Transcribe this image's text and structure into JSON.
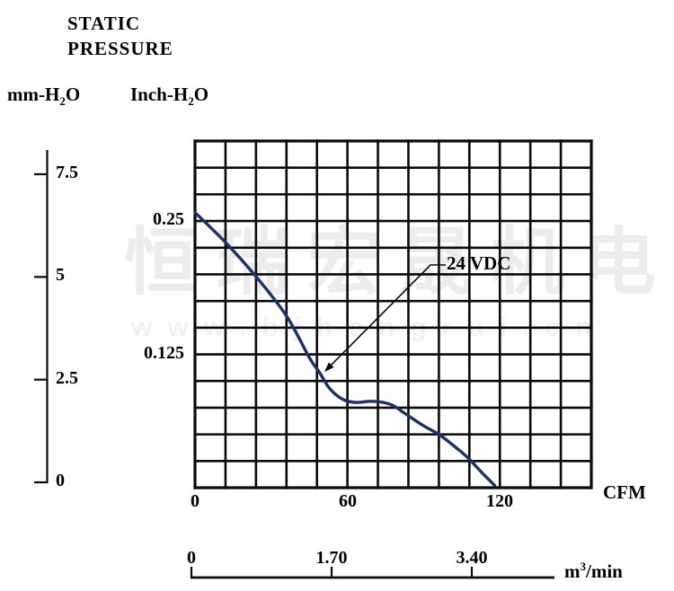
{
  "title": {
    "line1": "STATIC",
    "line2": "PRESSURE"
  },
  "axis_unit_labels": {
    "left_outer": {
      "pre": "mm-H",
      "sub": "2",
      "post": "O"
    },
    "left_inner": {
      "pre": "Inch-H",
      "sub": "2",
      "post": "O"
    },
    "x_primary_unit": "CFM",
    "x_secondary_unit": {
      "pre": "m",
      "sup": "3",
      "post": "/min"
    }
  },
  "watermark": {
    "line1": "恒瑞宏晟机电",
    "line2": "www.bjhengrui.cn"
  },
  "annotation": {
    "label": "24 VDC"
  },
  "colors": {
    "curve": "#1a3169",
    "grid": "#0a0a0a",
    "watermark_cn": "#ececec",
    "watermark_url": "#f1f1f1"
  },
  "chart_data": {
    "type": "line",
    "title": "Static Pressure vs Airflow",
    "grid": {
      "cols": 13,
      "rows": 13,
      "grid_on": true
    },
    "x_axis": {
      "unit": "CFM",
      "ticks": [
        {
          "label": "0",
          "value": 0
        },
        {
          "label": "60",
          "value": 60
        },
        {
          "label": "120",
          "value": 120
        }
      ],
      "range": [
        0,
        156
      ],
      "cfm_per_cell": 12
    },
    "x_axis_secondary": {
      "unit": "m3/min",
      "ticks": [
        {
          "label": "0",
          "value": 0
        },
        {
          "label": "1.70",
          "value": 1.7
        },
        {
          "label": "3.40",
          "value": 3.4
        }
      ],
      "range": [
        0,
        3.4
      ]
    },
    "y_axis_inner": {
      "unit": "Inch-H2O",
      "ticks": [
        {
          "label": "0.25",
          "value": 0.25
        },
        {
          "label": "0.125",
          "value": 0.125
        }
      ],
      "range": [
        0,
        0.325
      ],
      "inch_per_cell": 0.025
    },
    "y_axis_outer": {
      "unit": "mm-H2O",
      "ticks": [
        {
          "label": "7.5",
          "value": 7.5
        },
        {
          "label": "5",
          "value": 5
        },
        {
          "label": "2.5",
          "value": 2.5
        },
        {
          "label": "0",
          "value": 0
        }
      ],
      "range": [
        0,
        8.1
      ]
    },
    "series": [
      {
        "name": "24 VDC",
        "x_unit": "CFM",
        "y_unit": "Inch-H2O",
        "points": [
          [
            0,
            0.258
          ],
          [
            12,
            0.23
          ],
          [
            24,
            0.198
          ],
          [
            36,
            0.161
          ],
          [
            45,
            0.122
          ],
          [
            49,
            0.108
          ],
          [
            53,
            0.093
          ],
          [
            58,
            0.083
          ],
          [
            63,
            0.08
          ],
          [
            69,
            0.081
          ],
          [
            74,
            0.08
          ],
          [
            78,
            0.077
          ],
          [
            83,
            0.069
          ],
          [
            90,
            0.058
          ],
          [
            96,
            0.05
          ],
          [
            102,
            0.039
          ],
          [
            107,
            0.029
          ],
          [
            113,
            0.014
          ],
          [
            118,
            0.002
          ]
        ]
      }
    ],
    "annotations": [
      {
        "text": "24 VDC",
        "points_to_series": "24 VDC"
      }
    ],
    "legend": "none"
  }
}
